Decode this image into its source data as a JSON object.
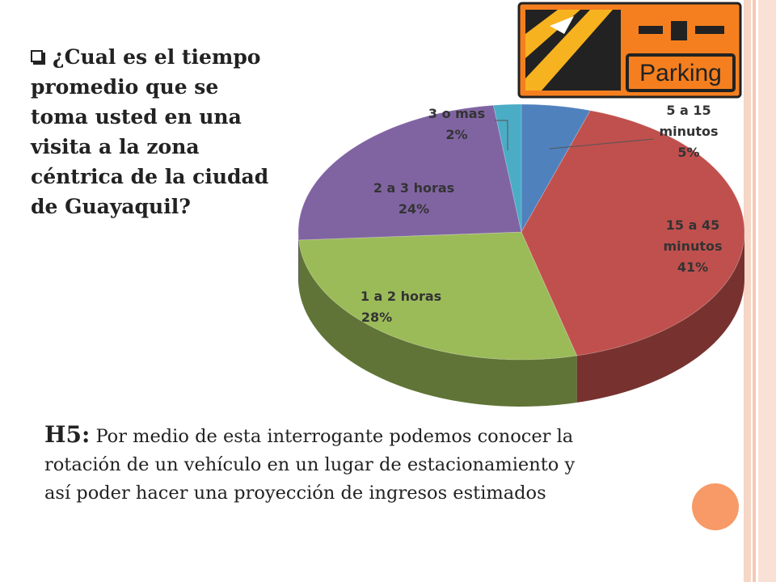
{
  "question": "¿Cual es el tiempo promedio que se toma usted en una visita a la zona céntrica de la ciudad de Guayaquil?",
  "hypothesis": {
    "label": "H5:",
    "text": "Por medio de esta interrogante podemos conocer la rotación de un vehículo en un lugar de estacionamiento y así poder hacer una proyección de ingresos estimados"
  },
  "logo": {
    "text": "Parking",
    "icon": "parking-logo"
  },
  "colors": {
    "stripe": "#f4c8b4",
    "accent": "#f79a67",
    "logo_orange": "#f57f1f"
  },
  "chart_data": {
    "type": "pie",
    "title": "",
    "categories": [
      "5 a 15 minutos",
      "15 a 45 minutos",
      "1 a 2 horas",
      "2 a 3 horas",
      "3 o mas"
    ],
    "values": [
      5,
      41,
      28,
      24,
      2
    ],
    "unit": "%",
    "labels": [
      [
        "5 a 15",
        "minutos",
        "5%"
      ],
      [
        "15 a 45",
        "minutos",
        "41%"
      ],
      [
        "1 a 2  horas",
        "28%"
      ],
      [
        "2 a 3  horas",
        "24%"
      ],
      [
        "3 o mas",
        "2%"
      ]
    ],
    "colors": [
      "#4f81bd",
      "#c0504d",
      "#9bbb59",
      "#8064a2",
      "#4bacc6"
    ],
    "style": "3d"
  }
}
